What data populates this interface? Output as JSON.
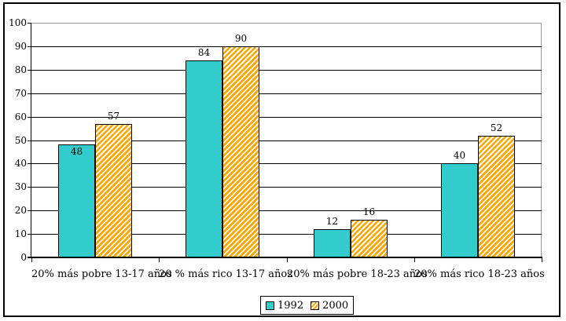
{
  "chart_data": {
    "type": "bar",
    "title": "",
    "xlabel": "",
    "ylabel": "",
    "categories": [
      "20% más pobre 13-17 años",
      "20 % más rico 13-17 años",
      "20% más pobre 18-23 años",
      "20% más rico 18-23 años"
    ],
    "series": [
      {
        "name": "1992",
        "values": [
          48,
          84,
          12,
          40
        ],
        "color": "#33CCCC",
        "fill": "solid"
      },
      {
        "name": "2000",
        "values": [
          57,
          90,
          16,
          52
        ],
        "color": "#FFA500",
        "fill": "diagonal-hatch",
        "hatch_background": "#FFFFFF"
      }
    ],
    "data_labels": [
      {
        "series_index": 0,
        "labels": [
          "48",
          "84",
          "12",
          "40"
        ]
      },
      {
        "series_index": 1,
        "labels": [
          "57",
          "90",
          "16",
          "52"
        ]
      }
    ],
    "inside_labels": [
      {
        "series_index": 0,
        "category_index": 0
      }
    ],
    "ylim": [
      0,
      100
    ],
    "ytick_step": 10,
    "ytick_labels": [
      "0",
      "10",
      "20",
      "30",
      "40",
      "50",
      "60",
      "70",
      "80",
      "90",
      "100"
    ],
    "grid": "horizontal",
    "gridline_color": "#000000",
    "plot_border_color": "#969696",
    "axis_color": "#000000",
    "frame_color": "#000000",
    "background_color": "#FFFFFF",
    "legend_position": "bottom"
  }
}
